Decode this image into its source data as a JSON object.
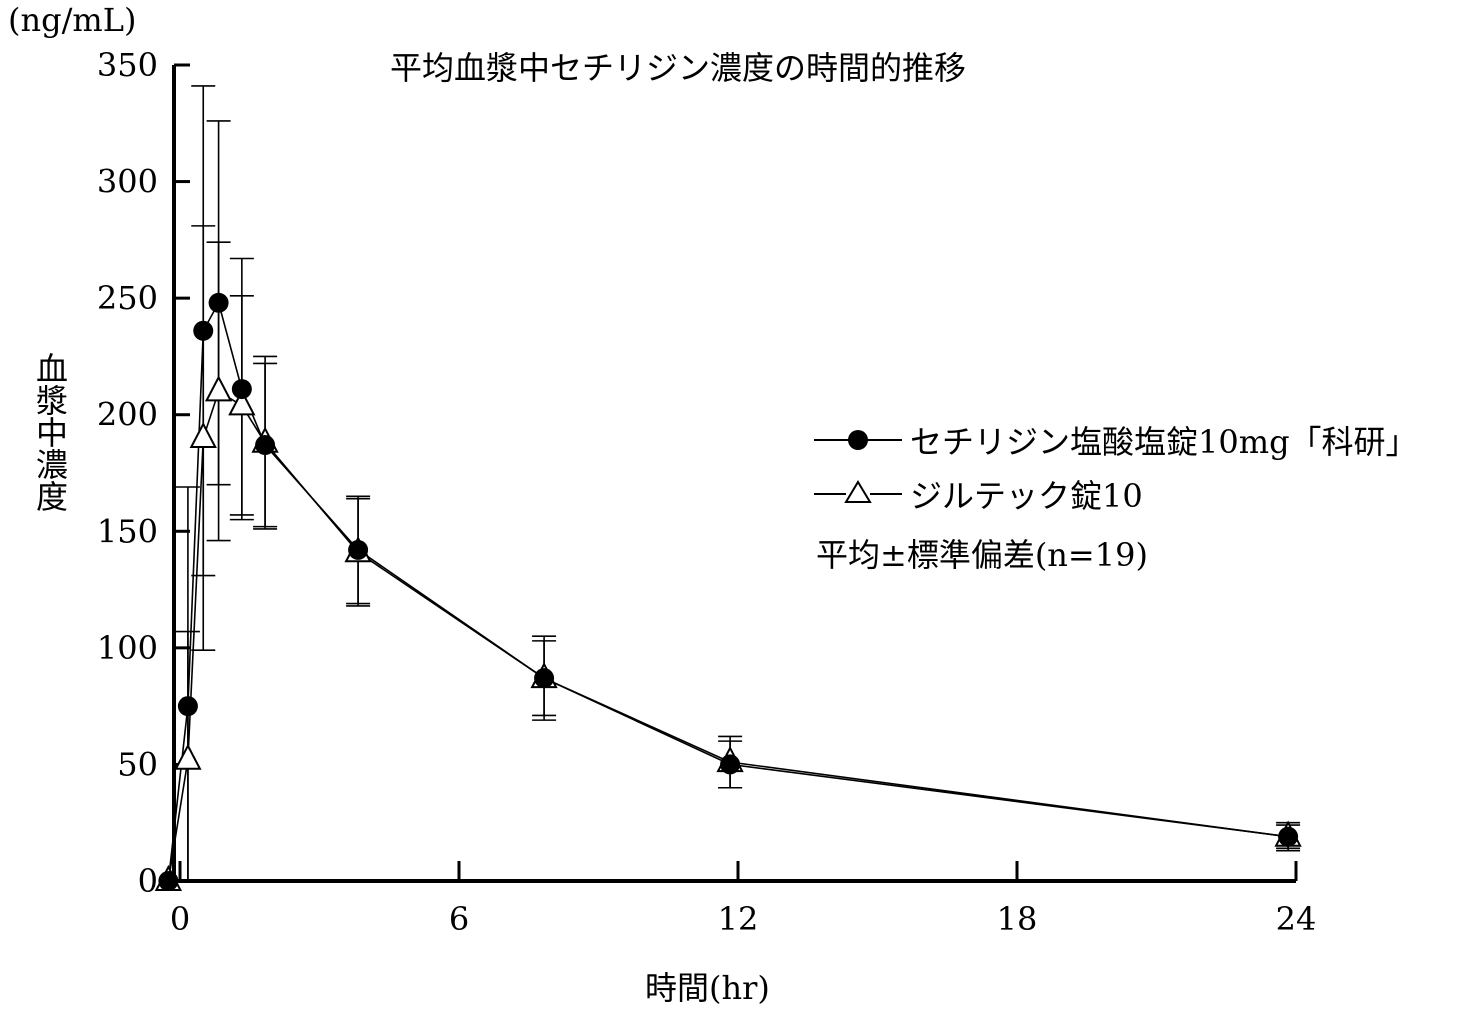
{
  "chart_data": {
    "type": "line",
    "title": "平均血漿中セチリジン濃度の時間的推移",
    "unit_label": "(ng/mL)",
    "ylabel": "血漿中濃度",
    "xlabel": "時間(hr)",
    "xlim": [
      0,
      24
    ],
    "ylim": [
      0,
      350
    ],
    "x_ticks": [
      0,
      6,
      12,
      18,
      24
    ],
    "y_ticks": [
      0,
      50,
      100,
      150,
      200,
      250,
      300,
      350
    ],
    "grid": false,
    "legend_position": "right",
    "legend_note": "平均±標準偏差(n=19)",
    "series": [
      {
        "name": "セチリジン塩酸塩錠10mg「科研」",
        "marker": "filled-circle",
        "color": "#000000",
        "points": [
          {
            "x": -0.25,
            "y": 0,
            "sd": 0
          },
          {
            "x": 0.17,
            "y": 75,
            "sd": 94
          },
          {
            "x": 0.5,
            "y": 236,
            "sd": 105
          },
          {
            "x": 0.83,
            "y": 248,
            "sd": 78
          },
          {
            "x": 1.33,
            "y": 211,
            "sd": 56
          },
          {
            "x": 1.83,
            "y": 187,
            "sd": 35
          },
          {
            "x": 3.83,
            "y": 142,
            "sd": 23
          },
          {
            "x": 7.83,
            "y": 87,
            "sd": 18
          },
          {
            "x": 11.83,
            "y": 50,
            "sd": 10
          },
          {
            "x": 23.83,
            "y": 19,
            "sd": 5
          }
        ]
      },
      {
        "name": "ジルテック錠10",
        "marker": "open-triangle",
        "color": "#000000",
        "points": [
          {
            "x": -0.25,
            "y": 0,
            "sd": 0
          },
          {
            "x": 0.17,
            "y": 52,
            "sd": 55
          },
          {
            "x": 0.5,
            "y": 190,
            "sd": 91
          },
          {
            "x": 0.83,
            "y": 210,
            "sd": 64
          },
          {
            "x": 1.33,
            "y": 204,
            "sd": 47
          },
          {
            "x": 1.83,
            "y": 188,
            "sd": 37
          },
          {
            "x": 3.83,
            "y": 141,
            "sd": 23
          },
          {
            "x": 7.83,
            "y": 87,
            "sd": 16
          },
          {
            "x": 11.83,
            "y": 51,
            "sd": 11
          },
          {
            "x": 23.83,
            "y": 19,
            "sd": 6
          }
        ]
      }
    ]
  }
}
